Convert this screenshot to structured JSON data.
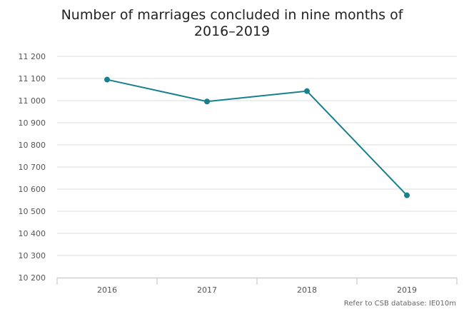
{
  "chart_data": {
    "type": "line",
    "title_lines": [
      "Number of marriages concluded in nine months of",
      "2016–2019"
    ],
    "categories": [
      "2016",
      "2017",
      "2018",
      "2019"
    ],
    "series": [
      {
        "values": [
          11095,
          10996,
          11043,
          10572
        ]
      }
    ],
    "ylim": [
      10200,
      11200
    ],
    "yticks": [
      10200,
      10300,
      10400,
      10500,
      10600,
      10700,
      10800,
      10900,
      11000,
      11100,
      11200
    ],
    "ytick_labels": [
      "10 200",
      "10 300",
      "10 400",
      "10 500",
      "10 600",
      "10 700",
      "10 800",
      "10 900",
      "11 000",
      "11 100",
      "11 200"
    ],
    "grid": true,
    "legend": "none",
    "line_color": "#17808a",
    "credit": "Refer to CSB database: IE010m"
  }
}
